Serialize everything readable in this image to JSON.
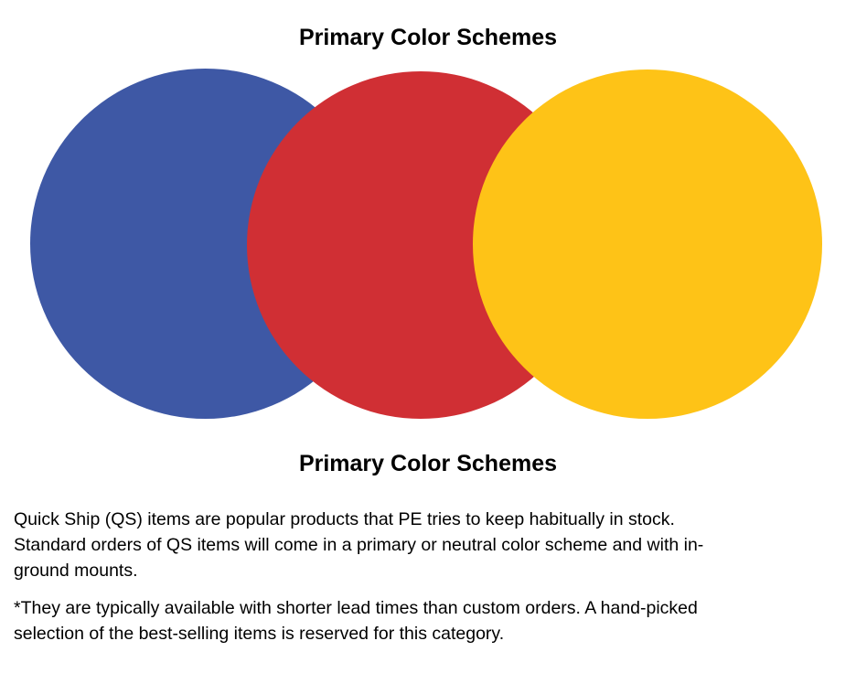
{
  "titles": {
    "top": "Primary Color Schemes",
    "bottom": "Primary Color Schemes"
  },
  "venn": {
    "circles": [
      {
        "name": "blue",
        "color": "#3E58A5"
      },
      {
        "name": "red",
        "color": "#D02F34"
      },
      {
        "name": "yellow",
        "color": "#FEC317"
      }
    ]
  },
  "body": {
    "paragraph1": "Quick Ship (QS) items are popular products that PE tries to keep habitually in stock.\nStandard orders of QS items will come in a primary or neutral color scheme and with in-\nground mounts.",
    "paragraph2": "*They are typically available with shorter lead times than custom orders. A hand-picked\nselection of the best-selling items is reserved for this category."
  }
}
